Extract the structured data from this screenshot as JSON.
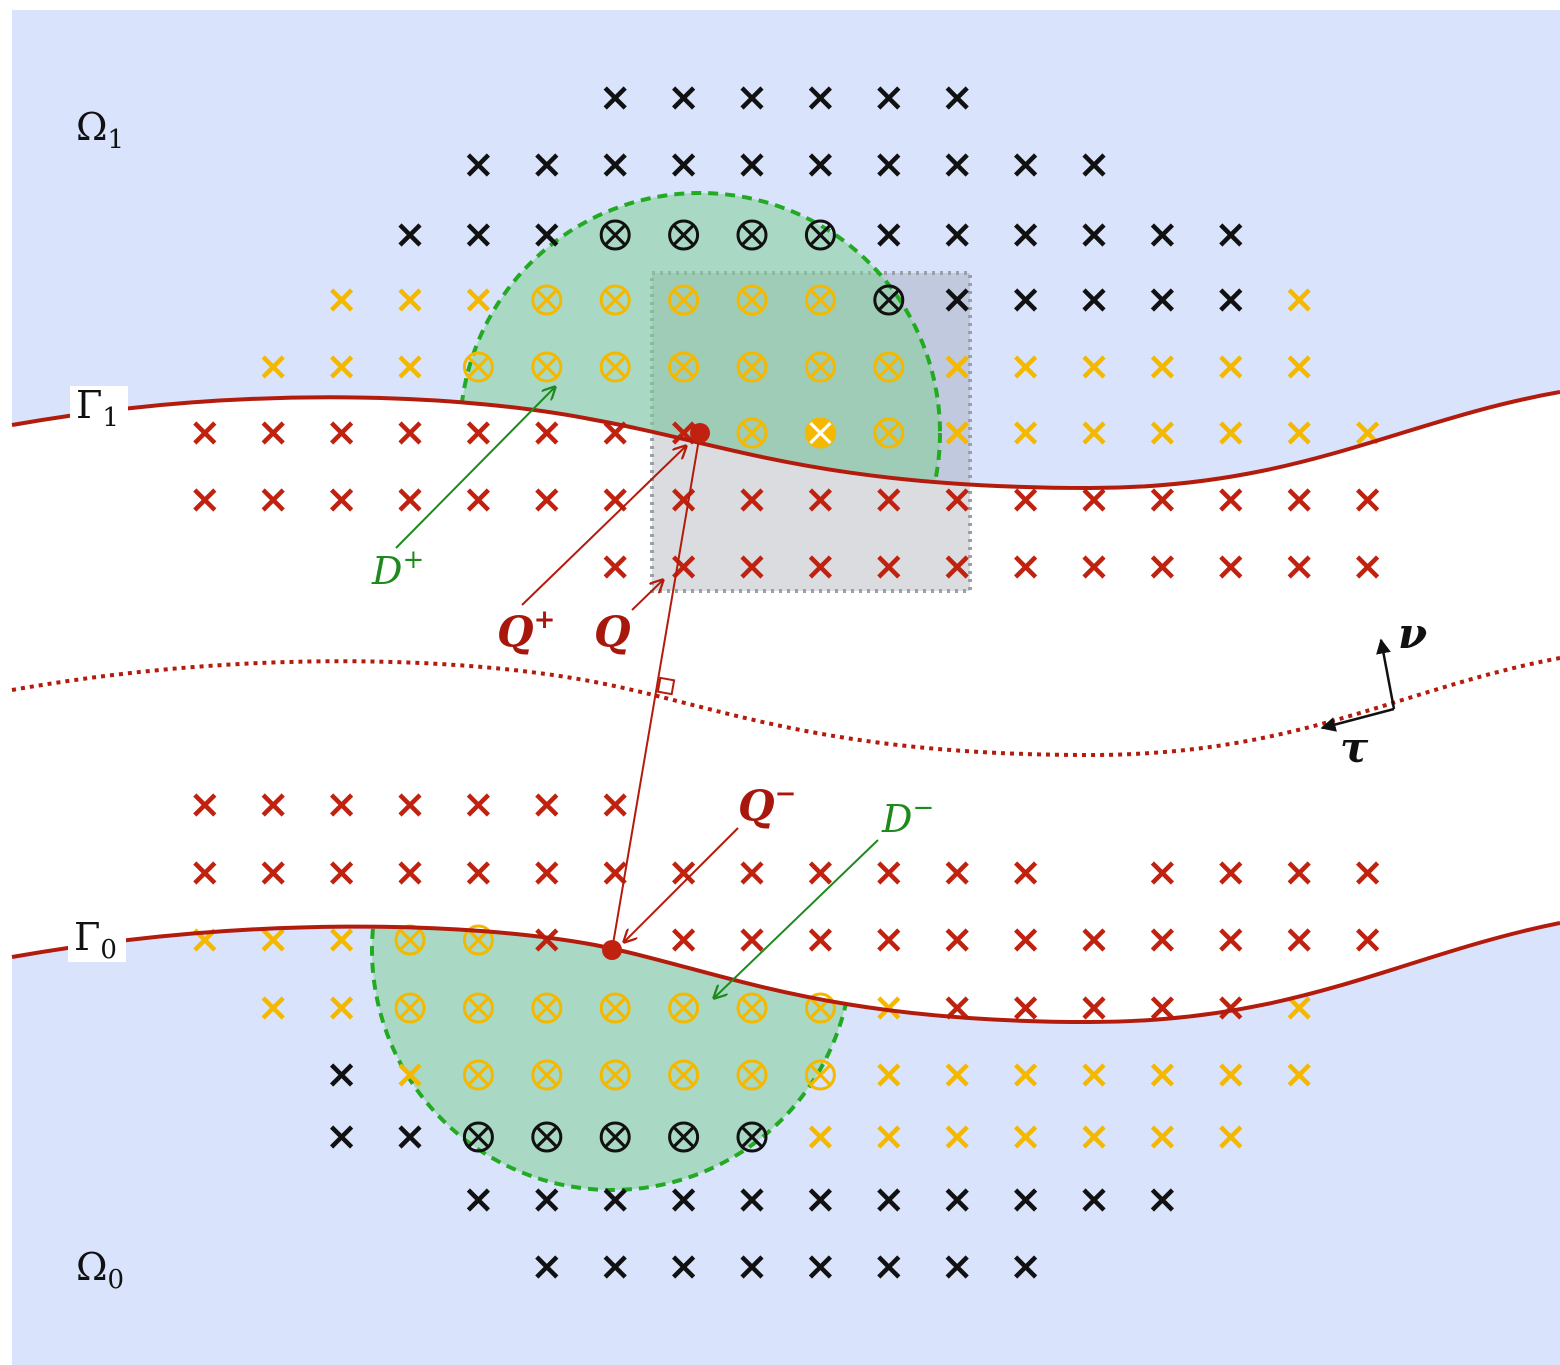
{
  "labels": {
    "omega1": {
      "base": "Ω",
      "sub": "1"
    },
    "omega0": {
      "base": "Ω",
      "sub": "0"
    },
    "gamma1": {
      "base": "Γ",
      "sub": "1"
    },
    "gamma0": {
      "base": "Γ",
      "sub": "0"
    },
    "d_plus": {
      "base": "D",
      "sup": "+"
    },
    "d_minus": {
      "base": "D",
      "sup": "−"
    },
    "q_plus": {
      "base": "Q",
      "sup": "+"
    },
    "q": {
      "base": "Q"
    },
    "q_minus": {
      "base": "Q",
      "sup": "−"
    },
    "nu": "ν",
    "tau": "τ"
  },
  "colors": {
    "domain_fill": "#d9e4fc",
    "interface": "#b31b0c",
    "green_region": "#b4e0c4",
    "green_dash": "#22aa22",
    "green_text": "#1e8a1e",
    "gray_box": "#9aa0a8",
    "yellow": "#f5b800",
    "red": "#c0220f",
    "black": "#111111"
  },
  "markers": {
    "top_rows": [
      {
        "row": 0,
        "items": [
          [
            "x",
            8,
            "k"
          ],
          [
            "x",
            9,
            "k"
          ],
          [
            "x",
            10,
            "k"
          ],
          [
            "x",
            11,
            "k"
          ],
          [
            "x",
            12,
            "k"
          ],
          [
            "x",
            13,
            "k"
          ]
        ]
      },
      {
        "row": 1,
        "items": [
          [
            "x",
            6,
            "k"
          ],
          [
            "x",
            7,
            "k"
          ],
          [
            "x",
            8,
            "k"
          ],
          [
            "x",
            9,
            "k"
          ],
          [
            "x",
            10,
            "k"
          ],
          [
            "x",
            11,
            "k"
          ],
          [
            "x",
            12,
            "k"
          ],
          [
            "x",
            13,
            "k"
          ],
          [
            "x",
            14,
            "k"
          ],
          [
            "x",
            15,
            "k"
          ]
        ]
      },
      {
        "row": 2,
        "items": [
          [
            "x",
            5,
            "k"
          ],
          [
            "x",
            6,
            "k"
          ],
          [
            "x",
            7,
            "k"
          ],
          [
            "o",
            8,
            "k"
          ],
          [
            "o",
            9,
            "k"
          ],
          [
            "o",
            10,
            "k"
          ],
          [
            "o",
            11,
            "k"
          ],
          [
            "x",
            12,
            "k"
          ],
          [
            "x",
            13,
            "k"
          ],
          [
            "x",
            14,
            "k"
          ],
          [
            "x",
            15,
            "k"
          ],
          [
            "x",
            16,
            "k"
          ],
          [
            "x",
            17,
            "k"
          ]
        ]
      },
      {
        "row": 3,
        "items": [
          [
            "x",
            4,
            "y"
          ],
          [
            "x",
            5,
            "y"
          ],
          [
            "x",
            6,
            "y"
          ],
          [
            "o",
            7,
            "y"
          ],
          [
            "o",
            8,
            "y"
          ],
          [
            "o",
            9,
            "y"
          ],
          [
            "o",
            10,
            "y"
          ],
          [
            "o",
            11,
            "y"
          ],
          [
            "o",
            12,
            "k"
          ],
          [
            "x",
            13,
            "k"
          ],
          [
            "x",
            14,
            "k"
          ],
          [
            "x",
            15,
            "k"
          ],
          [
            "x",
            16,
            "k"
          ],
          [
            "x",
            17,
            "k"
          ],
          [
            "x",
            18,
            "y"
          ]
        ]
      },
      {
        "row": 4,
        "items": [
          [
            "x",
            3,
            "y"
          ],
          [
            "x",
            4,
            "y"
          ],
          [
            "x",
            5,
            "y"
          ],
          [
            "o",
            6,
            "y"
          ],
          [
            "o",
            7,
            "y"
          ],
          [
            "o",
            8,
            "y"
          ],
          [
            "o",
            9,
            "y"
          ],
          [
            "o",
            10,
            "y"
          ],
          [
            "o",
            11,
            "y"
          ],
          [
            "o",
            12,
            "y"
          ],
          [
            "x",
            13,
            "y"
          ],
          [
            "x",
            14,
            "y"
          ],
          [
            "x",
            15,
            "y"
          ],
          [
            "x",
            16,
            "y"
          ],
          [
            "x",
            17,
            "y"
          ],
          [
            "x",
            18,
            "y"
          ]
        ]
      },
      {
        "row": 5,
        "items": [
          [
            "x",
            2,
            "r"
          ],
          [
            "x",
            3,
            "r"
          ],
          [
            "x",
            4,
            "r"
          ],
          [
            "x",
            5,
            "r"
          ],
          [
            "x",
            6,
            "r"
          ],
          [
            "x",
            7,
            "r"
          ],
          [
            "x",
            8,
            "r"
          ],
          [
            "x",
            9,
            "r"
          ],
          [
            "o",
            10,
            "y"
          ],
          [
            "O",
            11,
            "y"
          ],
          [
            "o",
            12,
            "y"
          ],
          [
            "x",
            13,
            "y"
          ],
          [
            "x",
            14,
            "y"
          ],
          [
            "x",
            15,
            "y"
          ],
          [
            "x",
            16,
            "y"
          ],
          [
            "x",
            17,
            "y"
          ],
          [
            "x",
            18,
            "y"
          ],
          [
            "x",
            19,
            "y"
          ]
        ]
      },
      {
        "row": 6,
        "items": [
          [
            "x",
            2,
            "r"
          ],
          [
            "x",
            3,
            "r"
          ],
          [
            "x",
            4,
            "r"
          ],
          [
            "x",
            5,
            "r"
          ],
          [
            "x",
            6,
            "r"
          ],
          [
            "x",
            7,
            "r"
          ],
          [
            "x",
            8,
            "r"
          ],
          [
            "x",
            9,
            "r"
          ],
          [
            "x",
            10,
            "r"
          ],
          [
            "x",
            11,
            "r"
          ],
          [
            "x",
            12,
            "r"
          ],
          [
            "x",
            13,
            "r"
          ],
          [
            "x",
            14,
            "r"
          ],
          [
            "x",
            15,
            "r"
          ],
          [
            "x",
            16,
            "r"
          ],
          [
            "x",
            17,
            "r"
          ],
          [
            "x",
            18,
            "r"
          ],
          [
            "x",
            19,
            "r"
          ]
        ]
      },
      {
        "row": 7,
        "items": [
          [
            "x",
            8,
            "r"
          ],
          [
            "x",
            9,
            "r"
          ],
          [
            "x",
            10,
            "r"
          ],
          [
            "x",
            11,
            "r"
          ],
          [
            "x",
            12,
            "r"
          ],
          [
            "x",
            13,
            "r"
          ],
          [
            "x",
            14,
            "r"
          ],
          [
            "x",
            15,
            "r"
          ],
          [
            "x",
            16,
            "r"
          ],
          [
            "x",
            17,
            "r"
          ],
          [
            "x",
            18,
            "r"
          ],
          [
            "x",
            19,
            "r"
          ]
        ]
      }
    ],
    "bottom_rows": [
      {
        "row": 8,
        "items": [
          [
            "x",
            2,
            "r"
          ],
          [
            "x",
            3,
            "r"
          ],
          [
            "x",
            4,
            "r"
          ],
          [
            "x",
            5,
            "r"
          ],
          [
            "x",
            6,
            "r"
          ],
          [
            "x",
            7,
            "r"
          ],
          [
            "x",
            8,
            "r"
          ]
        ]
      },
      {
        "row": 9,
        "items": [
          [
            "x",
            2,
            "r"
          ],
          [
            "x",
            3,
            "r"
          ],
          [
            "x",
            4,
            "r"
          ],
          [
            "x",
            5,
            "r"
          ],
          [
            "x",
            6,
            "r"
          ],
          [
            "x",
            7,
            "r"
          ],
          [
            "x",
            8,
            "r"
          ],
          [
            "x",
            9,
            "r"
          ],
          [
            "x",
            10,
            "r"
          ],
          [
            "x",
            11,
            "r"
          ],
          [
            "x",
            12,
            "r"
          ],
          [
            "x",
            13,
            "r"
          ],
          [
            "x",
            14,
            "r"
          ],
          [
            "x",
            16,
            "r"
          ],
          [
            "x",
            17,
            "r"
          ],
          [
            "x",
            18,
            "r"
          ],
          [
            "x",
            19,
            "r"
          ]
        ]
      },
      {
        "row": 10,
        "items": [
          [
            "x",
            2,
            "y"
          ],
          [
            "x",
            3,
            "y"
          ],
          [
            "x",
            4,
            "y"
          ],
          [
            "o",
            5,
            "y"
          ],
          [
            "o",
            6,
            "y"
          ],
          [
            "x",
            7,
            "r"
          ],
          [
            "x",
            9,
            "r"
          ],
          [
            "x",
            10,
            "r"
          ],
          [
            "x",
            11,
            "r"
          ],
          [
            "x",
            12,
            "r"
          ],
          [
            "x",
            13,
            "r"
          ],
          [
            "x",
            14,
            "r"
          ],
          [
            "x",
            15,
            "r"
          ],
          [
            "x",
            16,
            "r"
          ],
          [
            "x",
            17,
            "r"
          ],
          [
            "x",
            18,
            "r"
          ],
          [
            "x",
            19,
            "r"
          ]
        ]
      },
      {
        "row": 11,
        "items": [
          [
            "x",
            3,
            "y"
          ],
          [
            "x",
            4,
            "y"
          ],
          [
            "o",
            5,
            "y"
          ],
          [
            "o",
            6,
            "y"
          ],
          [
            "o",
            7,
            "y"
          ],
          [
            "o",
            8,
            "y"
          ],
          [
            "o",
            9,
            "y"
          ],
          [
            "o",
            10,
            "y"
          ],
          [
            "o",
            11,
            "y"
          ],
          [
            "x",
            12,
            "y"
          ],
          [
            "x",
            13,
            "r"
          ],
          [
            "x",
            14,
            "r"
          ],
          [
            "x",
            15,
            "r"
          ],
          [
            "x",
            16,
            "r"
          ],
          [
            "x",
            17,
            "r"
          ],
          [
            "x",
            18,
            "y"
          ]
        ]
      },
      {
        "row": 12,
        "items": [
          [
            "x",
            4,
            "k"
          ],
          [
            "x",
            5,
            "y"
          ],
          [
            "o",
            6,
            "y"
          ],
          [
            "o",
            7,
            "y"
          ],
          [
            "o",
            8,
            "y"
          ],
          [
            "o",
            9,
            "y"
          ],
          [
            "o",
            10,
            "y"
          ],
          [
            "o",
            11,
            "y"
          ],
          [
            "x",
            12,
            "y"
          ],
          [
            "x",
            13,
            "y"
          ],
          [
            "x",
            14,
            "y"
          ],
          [
            "x",
            15,
            "y"
          ],
          [
            "x",
            16,
            "y"
          ],
          [
            "x",
            17,
            "y"
          ],
          [
            "x",
            18,
            "y"
          ]
        ]
      },
      {
        "row": 13,
        "items": [
          [
            "x",
            4,
            "k"
          ],
          [
            "x",
            5,
            "k"
          ],
          [
            "o",
            6,
            "k"
          ],
          [
            "o",
            7,
            "k"
          ],
          [
            "o",
            8,
            "k"
          ],
          [
            "o",
            9,
            "k"
          ],
          [
            "o",
            10,
            "k"
          ],
          [
            "x",
            11,
            "y"
          ],
          [
            "x",
            12,
            "y"
          ],
          [
            "x",
            13,
            "y"
          ],
          [
            "x",
            14,
            "y"
          ],
          [
            "x",
            15,
            "y"
          ],
          [
            "x",
            16,
            "y"
          ],
          [
            "x",
            17,
            "y"
          ]
        ]
      },
      {
        "row": 14,
        "items": [
          [
            "x",
            6,
            "k"
          ],
          [
            "x",
            7,
            "k"
          ],
          [
            "x",
            8,
            "k"
          ],
          [
            "x",
            9,
            "k"
          ],
          [
            "x",
            10,
            "k"
          ],
          [
            "x",
            11,
            "k"
          ],
          [
            "x",
            12,
            "k"
          ],
          [
            "x",
            13,
            "k"
          ],
          [
            "x",
            14,
            "k"
          ],
          [
            "x",
            15,
            "k"
          ],
          [
            "x",
            16,
            "k"
          ]
        ]
      },
      {
        "row": 15,
        "items": [
          [
            "x",
            7,
            "k"
          ],
          [
            "x",
            8,
            "k"
          ],
          [
            "x",
            9,
            "k"
          ],
          [
            "x",
            10,
            "k"
          ],
          [
            "x",
            11,
            "k"
          ],
          [
            "x",
            12,
            "k"
          ],
          [
            "x",
            13,
            "k"
          ],
          [
            "x",
            14,
            "k"
          ]
        ]
      }
    ]
  }
}
